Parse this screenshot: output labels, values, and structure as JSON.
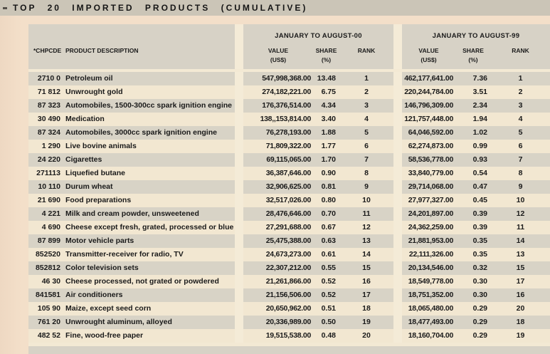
{
  "title": "TOP 20 IMPORTED PRODUCTS (CUMULATIVE)",
  "colors": {
    "page_background": "#f3dfc9",
    "title_bar": "#cbc5b7",
    "header_band": "#d7d2c6",
    "row_gray": "#d8d3c6",
    "row_cream": "#f2e7d1",
    "text": "#1a1a1a"
  },
  "table": {
    "code_header": "*CHPCDE",
    "desc_header": "PRODUCT DESCRIPTION",
    "g00": {
      "label": "JANUARY TO AUGUST-00",
      "value": "VALUE",
      "share": "SHARE",
      "rank": "RANK",
      "value_unit": "(US$)",
      "share_unit": "(%)"
    },
    "g99": {
      "label": "JANUARY TO AUGUST-99",
      "value": "VALUE",
      "share": "SHARE",
      "rank": "RANK",
      "value_unit": "(US$)",
      "share_unit": "(%)"
    },
    "rows": [
      {
        "code": "2710 0",
        "desc": "Petroleum oil",
        "v00": "547,998,368.00",
        "s00": "13.48",
        "r00": "1",
        "v99": "462,177,641.00",
        "s99": "7.36",
        "r99": "1"
      },
      {
        "code": "71 812",
        "desc": "Unwrought gold",
        "v00": "274,182,221.00",
        "s00": "6.75",
        "r00": "2",
        "v99": "220,244,784.00",
        "s99": "3.51",
        "r99": "2"
      },
      {
        "code": "87 323",
        "desc": "Automobiles, 1500-300cc spark ignition engine",
        "v00": "176,376,514.00",
        "s00": "4.34",
        "r00": "3",
        "v99": "146,796,309.00",
        "s99": "2.34",
        "r99": "3"
      },
      {
        "code": "30 490",
        "desc": "Medication",
        "v00": "138,,153,814.00",
        "s00": "3.40",
        "r00": "4",
        "v99": "121,757,448.00",
        "s99": "1.94",
        "r99": "4"
      },
      {
        "code": "87 324",
        "desc": "Automobiles, 3000cc spark ignition engine",
        "v00": "76,278,193.00",
        "s00": "1.88",
        "r00": "5",
        "v99": "64,046,592.00",
        "s99": "1.02",
        "r99": "5"
      },
      {
        "code": "1 290",
        "desc": "Live bovine animals",
        "v00": "71,809,322.00",
        "s00": "1.77",
        "r00": "6",
        "v99": "62,274,873.00",
        "s99": "0.99",
        "r99": "6"
      },
      {
        "code": "24 220",
        "desc": "Cigarettes",
        "v00": "69,115,065.00",
        "s00": "1.70",
        "r00": "7",
        "v99": "58,536,778.00",
        "s99": "0.93",
        "r99": "7"
      },
      {
        "code": "271113",
        "desc": "Liquefied butane",
        "v00": "36,387,646.00",
        "s00": "0.90",
        "r00": "8",
        "v99": "33,840,779.00",
        "s99": "0.54",
        "r99": "8"
      },
      {
        "code": "10 110",
        "desc": "Durum wheat",
        "v00": "32,906,625.00",
        "s00": "0.81",
        "r00": "9",
        "v99": "29,714,068.00",
        "s99": "0.47",
        "r99": "9"
      },
      {
        "code": "21 690",
        "desc": "Food preparations",
        "v00": "32,517,026.00",
        "s00": "0.80",
        "r00": "10",
        "v99": "27,977,327.00",
        "s99": "0.45",
        "r99": "10"
      },
      {
        "code": "4 221",
        "desc": "Milk and cream powder, unsweetened",
        "v00": "28,476,646.00",
        "s00": "0.70",
        "r00": "11",
        "v99": "24,201,897.00",
        "s99": "0.39",
        "r99": "12"
      },
      {
        "code": "4 690",
        "desc": "Cheese except fresh, grated, processed or blue",
        "v00": "27,291,688.00",
        "s00": "0.67",
        "r00": "12",
        "v99": "24,362,259.00",
        "s99": "0.39",
        "r99": "11"
      },
      {
        "code": "87 899",
        "desc": "Motor vehicle parts",
        "v00": "25,475,388.00",
        "s00": "0.63",
        "r00": "13",
        "v99": "21,881,953.00",
        "s99": "0.35",
        "r99": "14"
      },
      {
        "code": "852520",
        "desc": "Transmitter-receiver for radio, TV",
        "v00": "24,673,273.00",
        "s00": "0.61",
        "r00": "14",
        "v99": "22,111,326.00",
        "s99": "0.35",
        "r99": "13"
      },
      {
        "code": "852812",
        "desc": "Color television sets",
        "v00": "22,307,212.00",
        "s00": "0.55",
        "r00": "15",
        "v99": "20,134,546.00",
        "s99": "0.32",
        "r99": "15"
      },
      {
        "code": "46 30",
        "desc": "Cheese processed, not grated or powdered",
        "v00": "21,261,866.00",
        "s00": "0.52",
        "r00": "16",
        "v99": "18,549,778.00",
        "s99": "0.30",
        "r99": "17"
      },
      {
        "code": "841581",
        "desc": "Air conditioners",
        "v00": "21,156,506.00",
        "s00": "0.52",
        "r00": "17",
        "v99": "18,751,352.00",
        "s99": "0.30",
        "r99": "16"
      },
      {
        "code": "105 90",
        "desc": "Maize, except seed corn",
        "v00": "20,650,962.00",
        "s00": "0.51",
        "r00": "18",
        "v99": "18,065,480.00",
        "s99": "0.29",
        "r99": "20"
      },
      {
        "code": "761 20",
        "desc": "Unwrought aluminum, alloyed",
        "v00": "20,336,989.00",
        "s00": "0.50",
        "r00": "19",
        "v99": "18,477,493.00",
        "s99": "0.29",
        "r99": "18"
      },
      {
        "code": "482 52",
        "desc": "Fine, wood-free paper",
        "v00": "19,515,538.00",
        "s00": "0.48",
        "r00": "20",
        "v99": "18,160,704.00",
        "s99": "0.29",
        "r99": "19"
      }
    ]
  }
}
